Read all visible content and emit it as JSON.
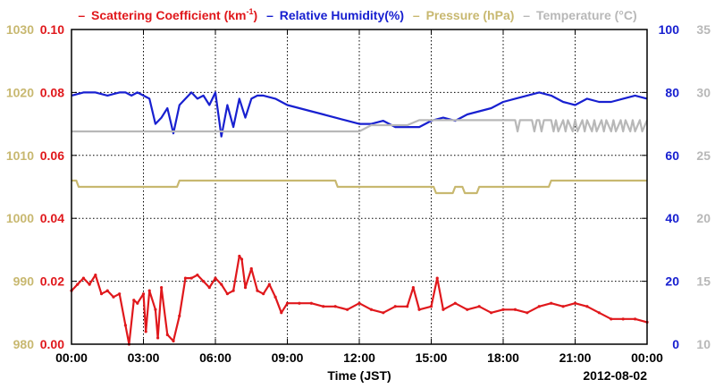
{
  "chart_data": {
    "type": "line",
    "legend": {
      "scatter": "Scattering Coefficient (km",
      "scatter_sup": "-1",
      "scatter_close": ")",
      "humidity": "Relative Humidity(%)",
      "pressure": "Pressure (hPa)",
      "temperature": "Temperature (°C)",
      "dash": "–"
    },
    "xlabel": "Time (JST)",
    "date_label": "2012-08-02",
    "x_ticks": [
      "00:00",
      "03:00",
      "06:00",
      "09:00",
      "12:00",
      "15:00",
      "18:00",
      "21:00",
      "00:00"
    ],
    "xlim_hours": [
      0,
      24
    ],
    "axes": {
      "pressure": {
        "ylim": [
          980,
          1030
        ],
        "ticks": [
          "1030",
          "1020",
          "1010",
          "1000",
          "990",
          "980"
        ],
        "color": "#c8b870"
      },
      "scatter": {
        "ylim": [
          0,
          0.1
        ],
        "ticks": [
          "0.10",
          "0.08",
          "0.06",
          "0.04",
          "0.02",
          "0.00"
        ],
        "color": "#e0181c"
      },
      "humidity": {
        "ylim": [
          0,
          100
        ],
        "ticks": [
          "100",
          "80",
          "60",
          "40",
          "20",
          "0"
        ],
        "color": "#1820d0"
      },
      "temperature": {
        "ylim": [
          10,
          35
        ],
        "ticks": [
          "35",
          "30",
          "25",
          "20",
          "15",
          "10"
        ],
        "color": "#b8b8b8"
      }
    },
    "grid": true,
    "series": [
      {
        "name": "Scattering Coefficient",
        "axis": "scatter",
        "color": "#e0181c",
        "x": [
          0,
          0.25,
          0.5,
          0.75,
          1.0,
          1.25,
          1.5,
          1.75,
          2.0,
          2.25,
          2.4,
          2.6,
          2.75,
          3.0,
          3.1,
          3.25,
          3.5,
          3.6,
          3.75,
          4.0,
          4.25,
          4.5,
          4.75,
          5.0,
          5.25,
          5.5,
          5.75,
          6.0,
          6.25,
          6.5,
          6.75,
          7.0,
          7.1,
          7.25,
          7.5,
          7.75,
          8.0,
          8.25,
          8.5,
          8.75,
          9.0,
          9.5,
          10.0,
          10.5,
          11.0,
          11.5,
          12.0,
          12.5,
          13.0,
          13.5,
          14.0,
          14.25,
          14.5,
          15.0,
          15.25,
          15.5,
          16.0,
          16.5,
          17.0,
          17.5,
          18.0,
          18.5,
          19.0,
          19.5,
          20.0,
          20.5,
          21.0,
          21.5,
          22.0,
          22.5,
          23.0,
          23.5,
          24.0
        ],
        "y": [
          0.017,
          0.019,
          0.021,
          0.019,
          0.022,
          0.016,
          0.017,
          0.015,
          0.016,
          0.006,
          0.0,
          0.014,
          0.013,
          0.016,
          0.004,
          0.017,
          0.011,
          0.002,
          0.018,
          0.003,
          0.001,
          0.009,
          0.021,
          0.021,
          0.022,
          0.02,
          0.018,
          0.021,
          0.019,
          0.016,
          0.017,
          0.028,
          0.027,
          0.018,
          0.024,
          0.017,
          0.016,
          0.019,
          0.015,
          0.01,
          0.013,
          0.013,
          0.013,
          0.012,
          0.012,
          0.011,
          0.013,
          0.011,
          0.01,
          0.012,
          0.012,
          0.018,
          0.011,
          0.012,
          0.021,
          0.011,
          0.013,
          0.011,
          0.012,
          0.01,
          0.011,
          0.011,
          0.01,
          0.012,
          0.013,
          0.012,
          0.013,
          0.012,
          0.01,
          0.008,
          0.008,
          0.008,
          0.007
        ]
      },
      {
        "name": "Relative Humidity",
        "axis": "humidity",
        "color": "#1820d0",
        "x": [
          0,
          0.5,
          1.0,
          1.5,
          2.0,
          2.25,
          2.5,
          2.75,
          3.0,
          3.25,
          3.5,
          3.75,
          4.0,
          4.25,
          4.5,
          4.75,
          5.0,
          5.25,
          5.5,
          5.75,
          6.0,
          6.25,
          6.5,
          6.75,
          7.0,
          7.25,
          7.5,
          7.75,
          8.0,
          8.5,
          9.0,
          9.5,
          10.0,
          10.5,
          11.0,
          11.5,
          12.0,
          12.5,
          13.0,
          13.5,
          14.0,
          14.5,
          15.0,
          15.5,
          16.0,
          16.5,
          17.0,
          17.5,
          18.0,
          18.5,
          19.0,
          19.5,
          20.0,
          20.5,
          21.0,
          21.5,
          22.0,
          22.5,
          23.0,
          23.5,
          24.0
        ],
        "y": [
          79,
          80,
          80,
          79,
          80,
          80,
          79,
          80,
          79,
          78,
          70,
          72,
          75,
          67,
          76,
          78,
          80,
          78,
          79,
          76,
          80,
          66,
          76,
          69,
          78,
          72,
          78,
          79,
          79,
          78,
          76,
          75,
          74,
          73,
          72,
          71,
          70,
          70,
          71,
          69,
          69,
          69,
          71,
          72,
          71,
          73,
          74,
          75,
          77,
          78,
          79,
          80,
          79,
          77,
          76,
          78,
          77,
          77,
          78,
          79,
          78
        ]
      },
      {
        "name": "Pressure",
        "axis": "pressure",
        "color": "#c8b870",
        "x": [
          0,
          0.2,
          0.3,
          4.4,
          4.5,
          11.0,
          11.1,
          15.1,
          15.2,
          15.9,
          16.0,
          16.3,
          16.4,
          16.9,
          17.0,
          17.3,
          17.4,
          19.9,
          20.0,
          24.0
        ],
        "y": [
          1006,
          1006,
          1005,
          1005,
          1006,
          1006,
          1005,
          1005,
          1004,
          1004,
          1005,
          1005,
          1004,
          1004,
          1005,
          1005,
          1005,
          1005,
          1006,
          1006
        ]
      },
      {
        "name": "Temperature",
        "axis": "temperature",
        "color": "#b8b8b8",
        "x": [
          0,
          12.0,
          12.5,
          14.0,
          14.5,
          18.0,
          18.5,
          18.6,
          18.7,
          19.2,
          19.3,
          19.4,
          19.5,
          19.6,
          19.7,
          20.0,
          20.1,
          20.2,
          20.3,
          20.5,
          20.6,
          20.7,
          20.9,
          21.0,
          21.1,
          21.3,
          21.4,
          21.5,
          21.7,
          21.8,
          21.9,
          22.1,
          22.2,
          22.3,
          22.5,
          22.6,
          22.7,
          22.9,
          23.0,
          23.1,
          23.3,
          23.4,
          23.5,
          23.7,
          23.8,
          24.0
        ],
        "y": [
          26.9,
          26.9,
          27.4,
          27.4,
          27.8,
          27.8,
          27.8,
          26.9,
          27.8,
          27.8,
          26.9,
          27.8,
          27.8,
          26.9,
          27.8,
          27.8,
          26.9,
          27.8,
          26.9,
          27.8,
          26.9,
          27.8,
          26.9,
          27.8,
          26.9,
          27.8,
          26.9,
          27.8,
          26.9,
          27.8,
          26.9,
          27.8,
          26.9,
          27.8,
          26.9,
          27.8,
          26.9,
          27.8,
          26.9,
          27.8,
          26.9,
          27.8,
          26.9,
          27.8,
          26.9,
          27.8
        ]
      }
    ]
  }
}
